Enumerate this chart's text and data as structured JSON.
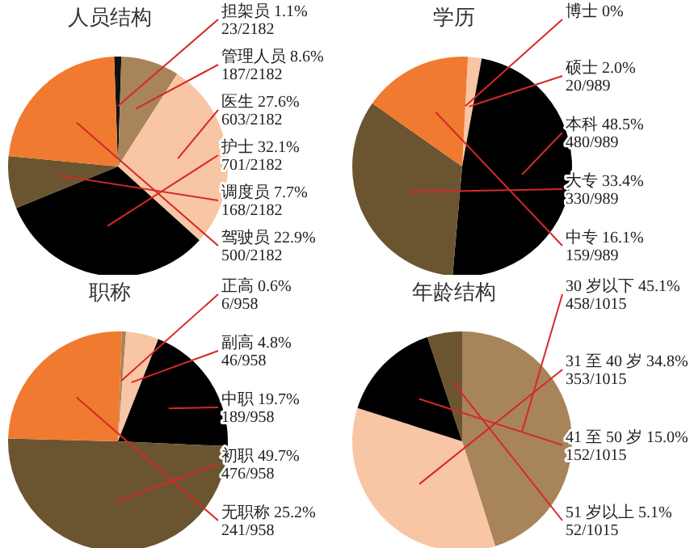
{
  "chart_data": [
    {
      "type": "pie",
      "title": "人员结构",
      "categories": [
        "担架员",
        "管理人员",
        "医生",
        "护士",
        "调度员",
        "驾驶员"
      ],
      "values": [
        23,
        187,
        603,
        701,
        168,
        500
      ],
      "colors": [
        "#111111",
        "#a8845a",
        "#f8c6a4",
        "#000000",
        "#6b5530",
        "#f07a30"
      ],
      "value_labels": [
        "1.1%\n23/2182",
        "8.6%\n187/2182",
        "27.6%\n603/2182",
        "32.1%\n701/2182",
        "7.7%\n168/2182",
        "22.9%\n500/2182"
      ]
    },
    {
      "type": "pie",
      "title": "学历",
      "categories": [
        "博士",
        "硕士",
        "本科",
        "大专",
        "中专"
      ],
      "values": [
        0,
        20,
        480,
        330,
        159
      ],
      "colors": [
        "#f8c6a4",
        "#f8c6a4",
        "#000000",
        "#6b5530",
        "#f07a30"
      ],
      "value_labels": [
        "0%",
        "2.0%\n20/989",
        "48.5%\n480/989",
        "33.4%\n330/989",
        "16.1%\n159/989"
      ]
    },
    {
      "type": "pie",
      "title": "职称",
      "categories": [
        "正高",
        "副高",
        "中职",
        "初职",
        "无职称"
      ],
      "values": [
        6,
        46,
        189,
        476,
        241
      ],
      "colors": [
        "#a8845a",
        "#f8c6a4",
        "#000000",
        "#6b5530",
        "#f07a30"
      ],
      "value_labels": [
        "0.6%\n6/958",
        "4.8%\n46/958",
        "19.7%\n189/958",
        "49.7%\n476/958",
        "25.2%\n241/958"
      ]
    },
    {
      "type": "pie",
      "title": "年龄结构",
      "categories": [
        "30 岁以下",
        "31 至 40 岁",
        "41 至 50 岁",
        "51 岁以上"
      ],
      "values": [
        458,
        353,
        152,
        52
      ],
      "colors": [
        "#a8845a",
        "#f8c6a4",
        "#000000",
        "#6b5530"
      ],
      "value_labels": [
        "45.1%\n458/1015",
        "34.8%\n353/1015",
        "15.0%\n152/1015",
        "5.1%\n52/1015"
      ]
    }
  ]
}
